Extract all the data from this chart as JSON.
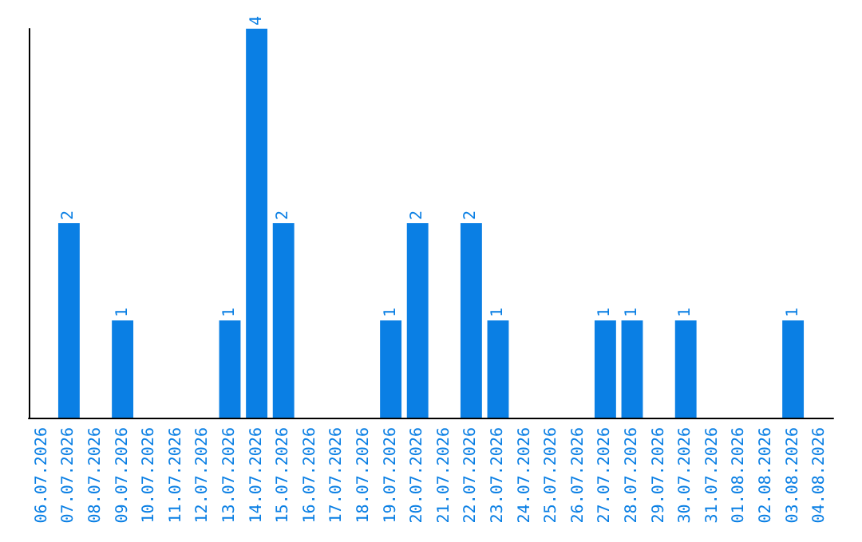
{
  "chart_data": {
    "type": "bar",
    "categories": [
      "06.07.2026",
      "07.07.2026",
      "08.07.2026",
      "09.07.2026",
      "10.07.2026",
      "11.07.2026",
      "12.07.2026",
      "13.07.2026",
      "14.07.2026",
      "15.07.2026",
      "16.07.2026",
      "17.07.2026",
      "18.07.2026",
      "19.07.2026",
      "20.07.2026",
      "21.07.2026",
      "22.07.2026",
      "23.07.2026",
      "24.07.2026",
      "25.07.2026",
      "26.07.2026",
      "27.07.2026",
      "28.07.2026",
      "29.07.2026",
      "30.07.2026",
      "31.07.2026",
      "01.08.2026",
      "02.08.2026",
      "03.08.2026",
      "04.08.2026"
    ],
    "values": [
      0,
      2,
      0,
      1,
      0,
      0,
      0,
      1,
      4,
      2,
      0,
      0,
      0,
      1,
      2,
      0,
      2,
      1,
      0,
      0,
      0,
      1,
      1,
      0,
      1,
      0,
      0,
      0,
      1,
      0
    ],
    "value_labels": [
      null,
      "2",
      null,
      "1",
      null,
      null,
      null,
      "1",
      "4",
      "2",
      null,
      null,
      null,
      "1",
      "2",
      null,
      "2",
      "1",
      null,
      null,
      null,
      "1",
      "1",
      null,
      "1",
      null,
      null,
      null,
      "1",
      null
    ],
    "color": "#0a7fe4",
    "grid": false,
    "tick_labels": "x"
  }
}
